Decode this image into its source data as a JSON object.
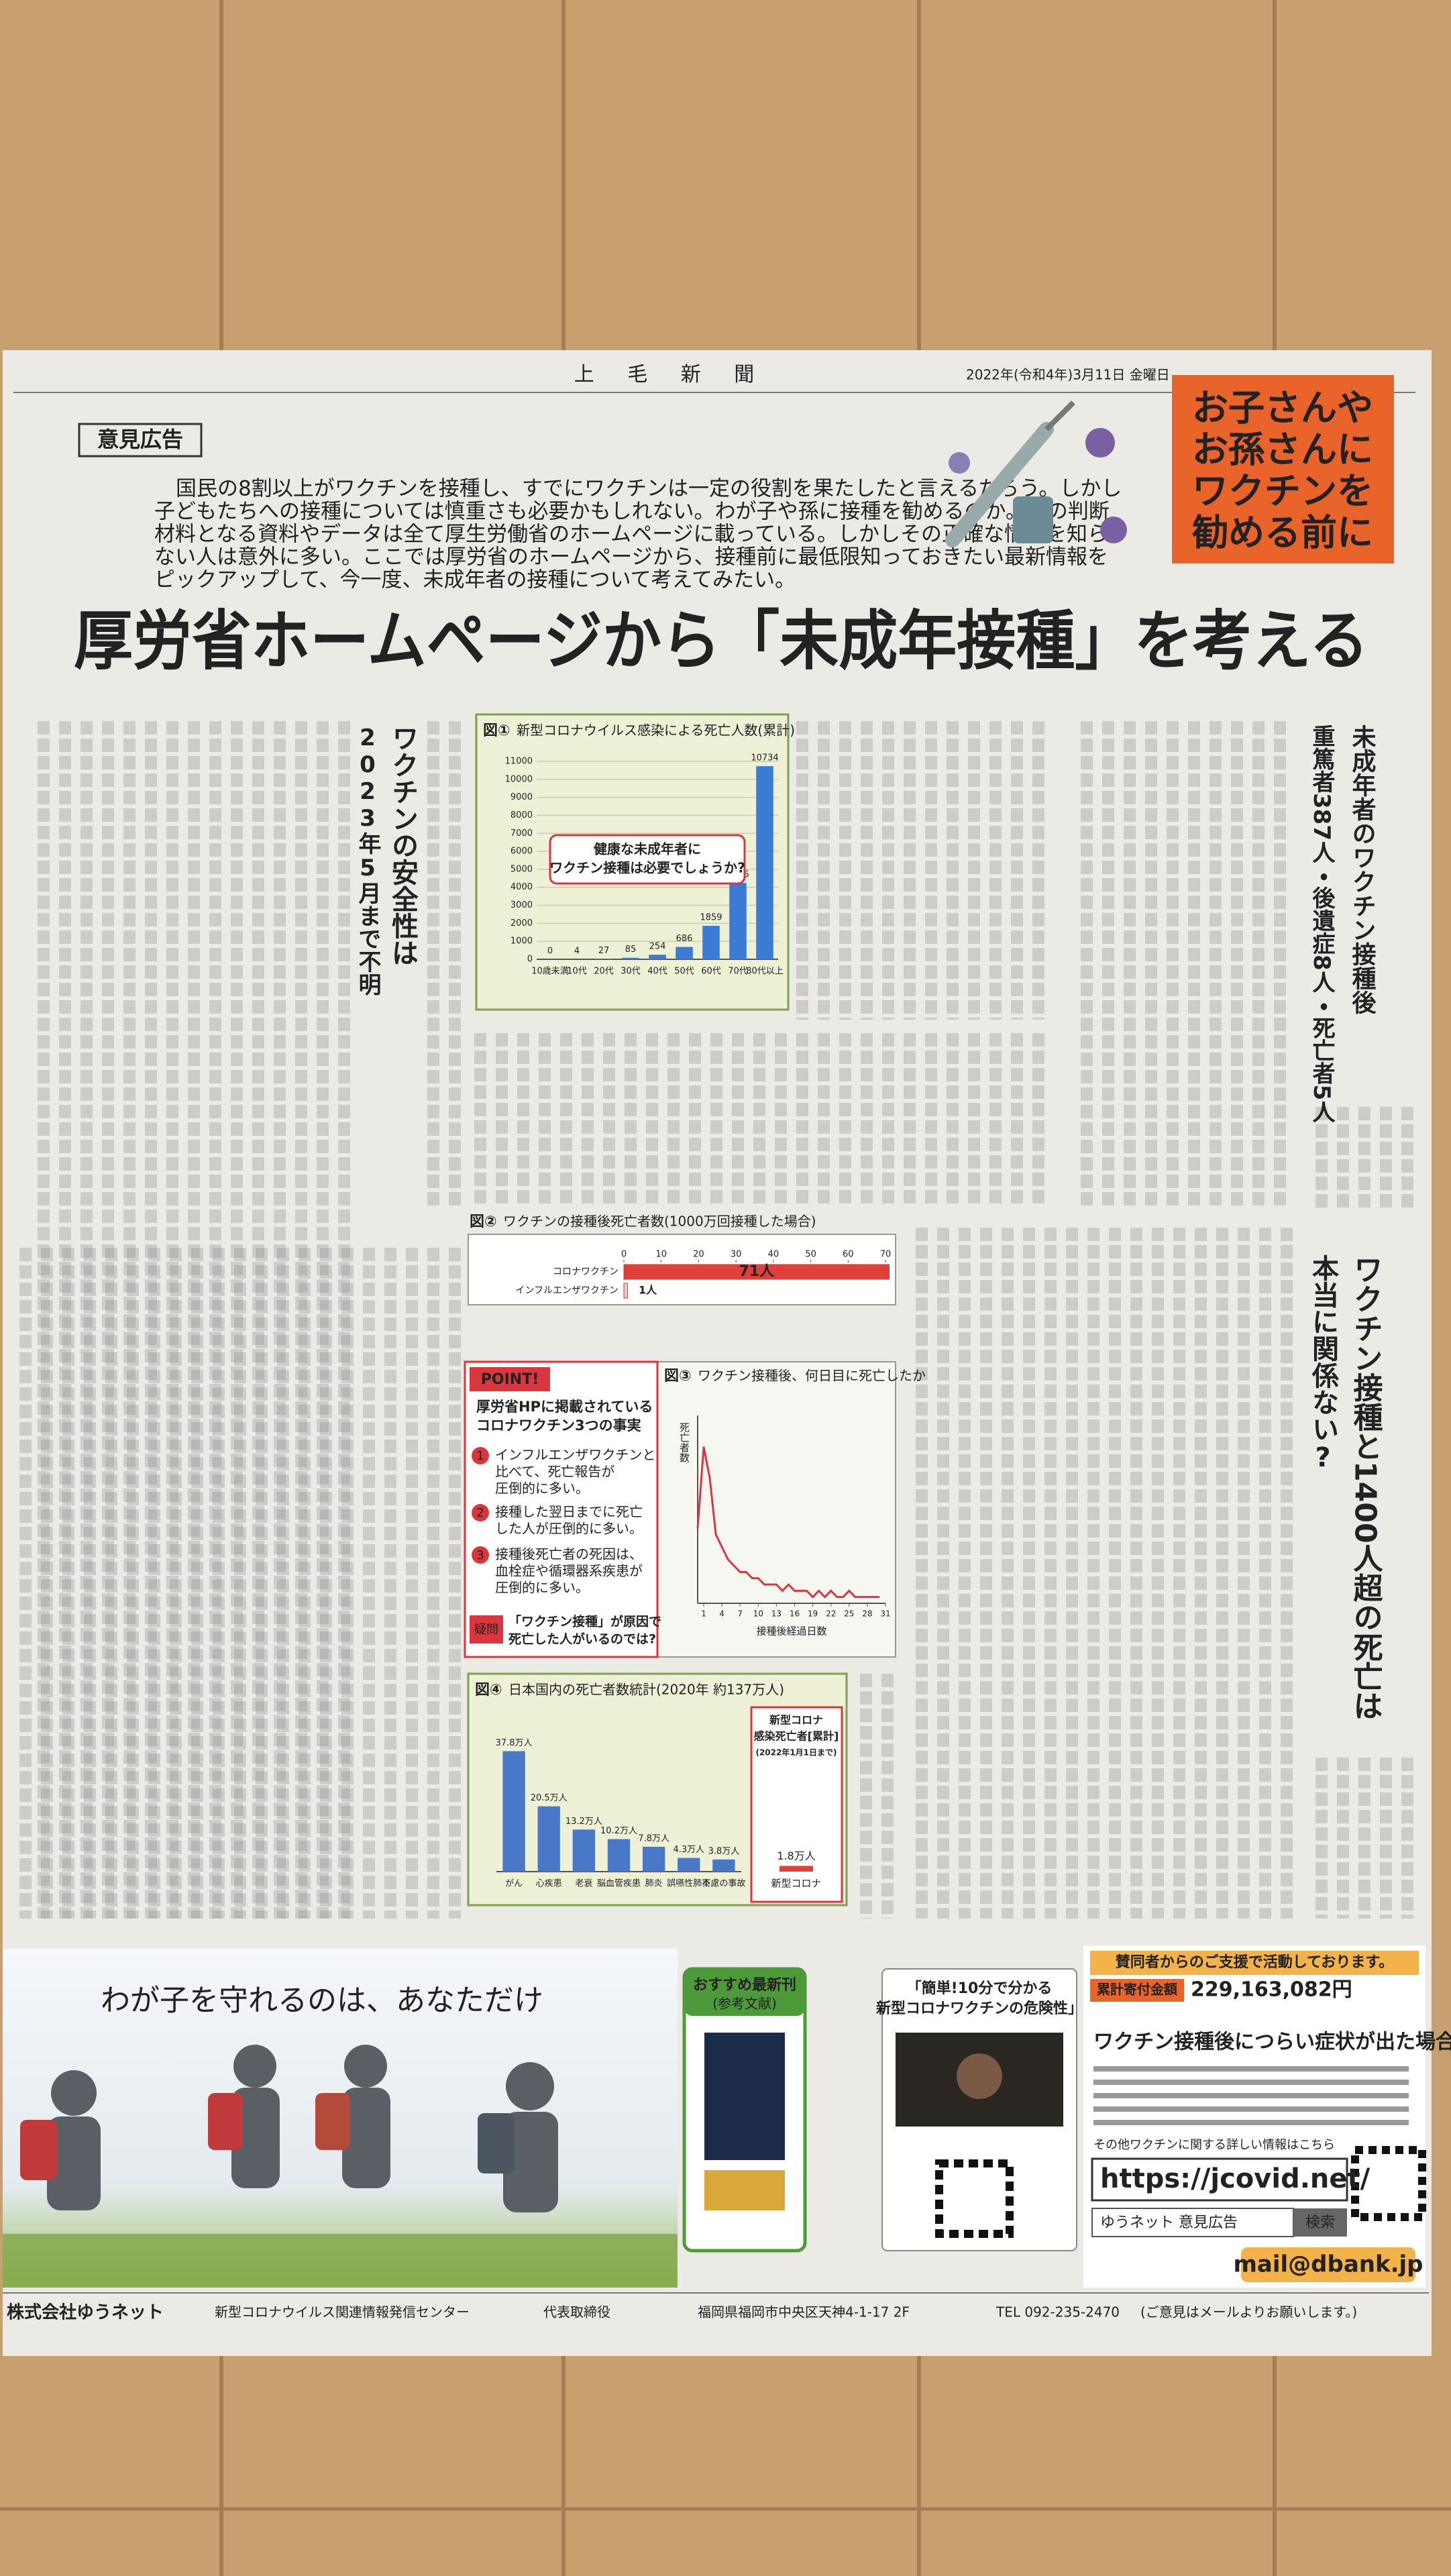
{
  "masthead": {
    "paper": "上 毛 新 聞",
    "date": "2022年(令和4年)3月11日 金曜日"
  },
  "label": "意見広告",
  "intro": [
    "国民の8割以上がワクチンを接種し、すでにワクチンは一定の役割を果たしたと言えるだろう。しかし",
    "子どもたちへの接種については慎重さも必要かもしれない。わが子や孫に接種を勧めるのか。その判断",
    "材料となる資料やデータは全て厚生労働省のホームページに載っている。しかしその正確な情報を知ら",
    "ない人は意外に多い。ここでは厚労省のホームページから、接種前に最低限知っておきたい最新情報を",
    "ピックアップして、今一度、未成年者の接種について考えてみたい。"
  ],
  "callout_box": [
    "お子さんや",
    "お孫さんに",
    "ワクチンを",
    "勧める前に"
  ],
  "headline": "厚労省ホームページから「未成年接種」を考える",
  "headings": {
    "safety": [
      "ワクチンの安全性は",
      "2023年5月まで不明"
    ],
    "minors": [
      "未成年者のワクチン接種後",
      "重篤者387人・後遺症8人・死亡者5人"
    ],
    "deaths": [
      "ワクチン接種と1400人超の死亡は",
      "本当に関係ない?"
    ]
  },
  "figures": {
    "covid_deaths": {
      "type": "bar",
      "label": "図①",
      "title": "新型コロナウイルス感染による死亡人数(累計)",
      "categories": [
        "10歳未満",
        "10代",
        "20代",
        "30代",
        "40代",
        "50代",
        "60代",
        "70代",
        "80代以上"
      ],
      "values": [
        0,
        4,
        27,
        85,
        254,
        686,
        1859,
        4246,
        10734
      ],
      "color": "#3a7bd5",
      "ylim": [
        0,
        11000
      ],
      "yticks": [
        0,
        1000,
        2000,
        3000,
        4000,
        5000,
        6000,
        7000,
        8000,
        9000,
        10000,
        11000
      ],
      "grid": true,
      "annotation": [
        "健康な未成年者に",
        "ワクチン接種は必要でしょうか?"
      ]
    },
    "post_vaccine_deaths": {
      "type": "hbar",
      "label": "図②",
      "title": "ワクチンの接種後死亡者数(1000万回接種した場合)",
      "categories": [
        "コロナワクチン",
        "インフルエンザワクチン"
      ],
      "values": [
        71,
        1
      ],
      "value_labels": [
        "71人",
        "1人"
      ],
      "colors": [
        "#e0403a",
        "#f2c9c4"
      ],
      "xlim": [
        0,
        70
      ],
      "xticks": [
        0,
        10,
        20,
        30,
        40,
        50,
        60,
        70
      ]
    },
    "days_to_death": {
      "type": "line",
      "label": "図③",
      "title": "ワクチン接種後、何日目に死亡したか",
      "x": [
        0,
        1,
        2,
        3,
        4,
        5,
        6,
        7,
        8,
        9,
        10,
        11,
        12,
        13,
        14,
        15,
        16,
        17,
        18,
        19,
        20,
        21,
        22,
        23,
        24,
        25,
        26,
        27,
        28,
        29,
        30
      ],
      "values": [
        12,
        25,
        20,
        11,
        9,
        7,
        6,
        5,
        5,
        4,
        4,
        3,
        3,
        3,
        2,
        3,
        2,
        2,
        2,
        1,
        2,
        1,
        2,
        1,
        1,
        2,
        1,
        1,
        1,
        1,
        1
      ],
      "color": "#d9363e",
      "xlim": [
        0,
        31
      ],
      "xticks": [
        1,
        4,
        7,
        10,
        13,
        16,
        19,
        22,
        25,
        28,
        31
      ],
      "ylim": [
        0,
        30
      ],
      "xlabel": "接種後経過日数",
      "ylabel": "死亡者数"
    },
    "japan_deaths": {
      "type": "bar",
      "label": "図④",
      "title": "日本国内の死亡者数統計(2020年 約137万人)",
      "categories": [
        "がん",
        "心疾患",
        "老衰",
        "脳血管疾患",
        "肺炎",
        "誤嚥性肺炎",
        "不慮の事故"
      ],
      "values": [
        37.8,
        20.5,
        13.2,
        10.2,
        7.8,
        4.3,
        3.8
      ],
      "value_labels": [
        "37.8万人",
        "20.5万人",
        "13.2万人",
        "10.2万人",
        "7.8万人",
        "4.3万人",
        "3.8万人"
      ],
      "color": "#4a78c8",
      "ylim": [
        0,
        40
      ],
      "inset": {
        "title": [
          "新型コロナ",
          "感染死亡者[累計]",
          "(2022年1月1日まで)"
        ],
        "category": "新型コロナ",
        "value": 1.8,
        "value_label": "1.8万人",
        "color": "#e0403a"
      }
    }
  },
  "point": {
    "badge": "POINT!",
    "title": [
      "厚労省HPに掲載されている",
      "コロナワクチン3つの事実"
    ],
    "numbers": [
      "1",
      "2",
      "3"
    ],
    "items": [
      [
        "インフルエンザワクチンと",
        "比べて、死亡報告が",
        "圧倒的に多い。"
      ],
      [
        "接種した翌日までに死亡",
        "した人が圧倒的に多い。"
      ],
      [
        "接種後死亡者の死因は、",
        "血栓症や循環器系疾患が",
        "圧倒的に多い。"
      ]
    ],
    "question_badge": "疑問",
    "question": [
      "「ワクチン接種」が原因で",
      "死亡した人がいるのでは?"
    ]
  },
  "banner": {
    "slogan": "わが子を守れるのは、あなただけ",
    "books": [
      "おすすめ最新刊",
      "(参考文献)"
    ],
    "video": [
      "「簡単!10分で分かる",
      "新型コロナワクチンの危険性」"
    ],
    "support": "賛同者からのご支援で活動しております。",
    "donation_label": "累計寄付金額",
    "donation": "229,163,082円",
    "symptoms": "ワクチン接種後につらい症状が出た場合は…",
    "more_info": "その他ワクチンに関する詳しい情報はこちら",
    "url": "https://jcovid.net/",
    "search_terms": "ゆうネット 意見広告",
    "search_button": "検索",
    "mail": "mail@dbank.jp"
  },
  "footer": {
    "company": "株式会社ゆうネット",
    "center": "新型コロナウイルス関連情報発信センター",
    "role": "代表取締役",
    "address": "福岡県福岡市中央区天神4-1-17 2F",
    "tel": "TEL 092-235-2470",
    "note": "(ご意見はメールよりお願いします。)"
  }
}
